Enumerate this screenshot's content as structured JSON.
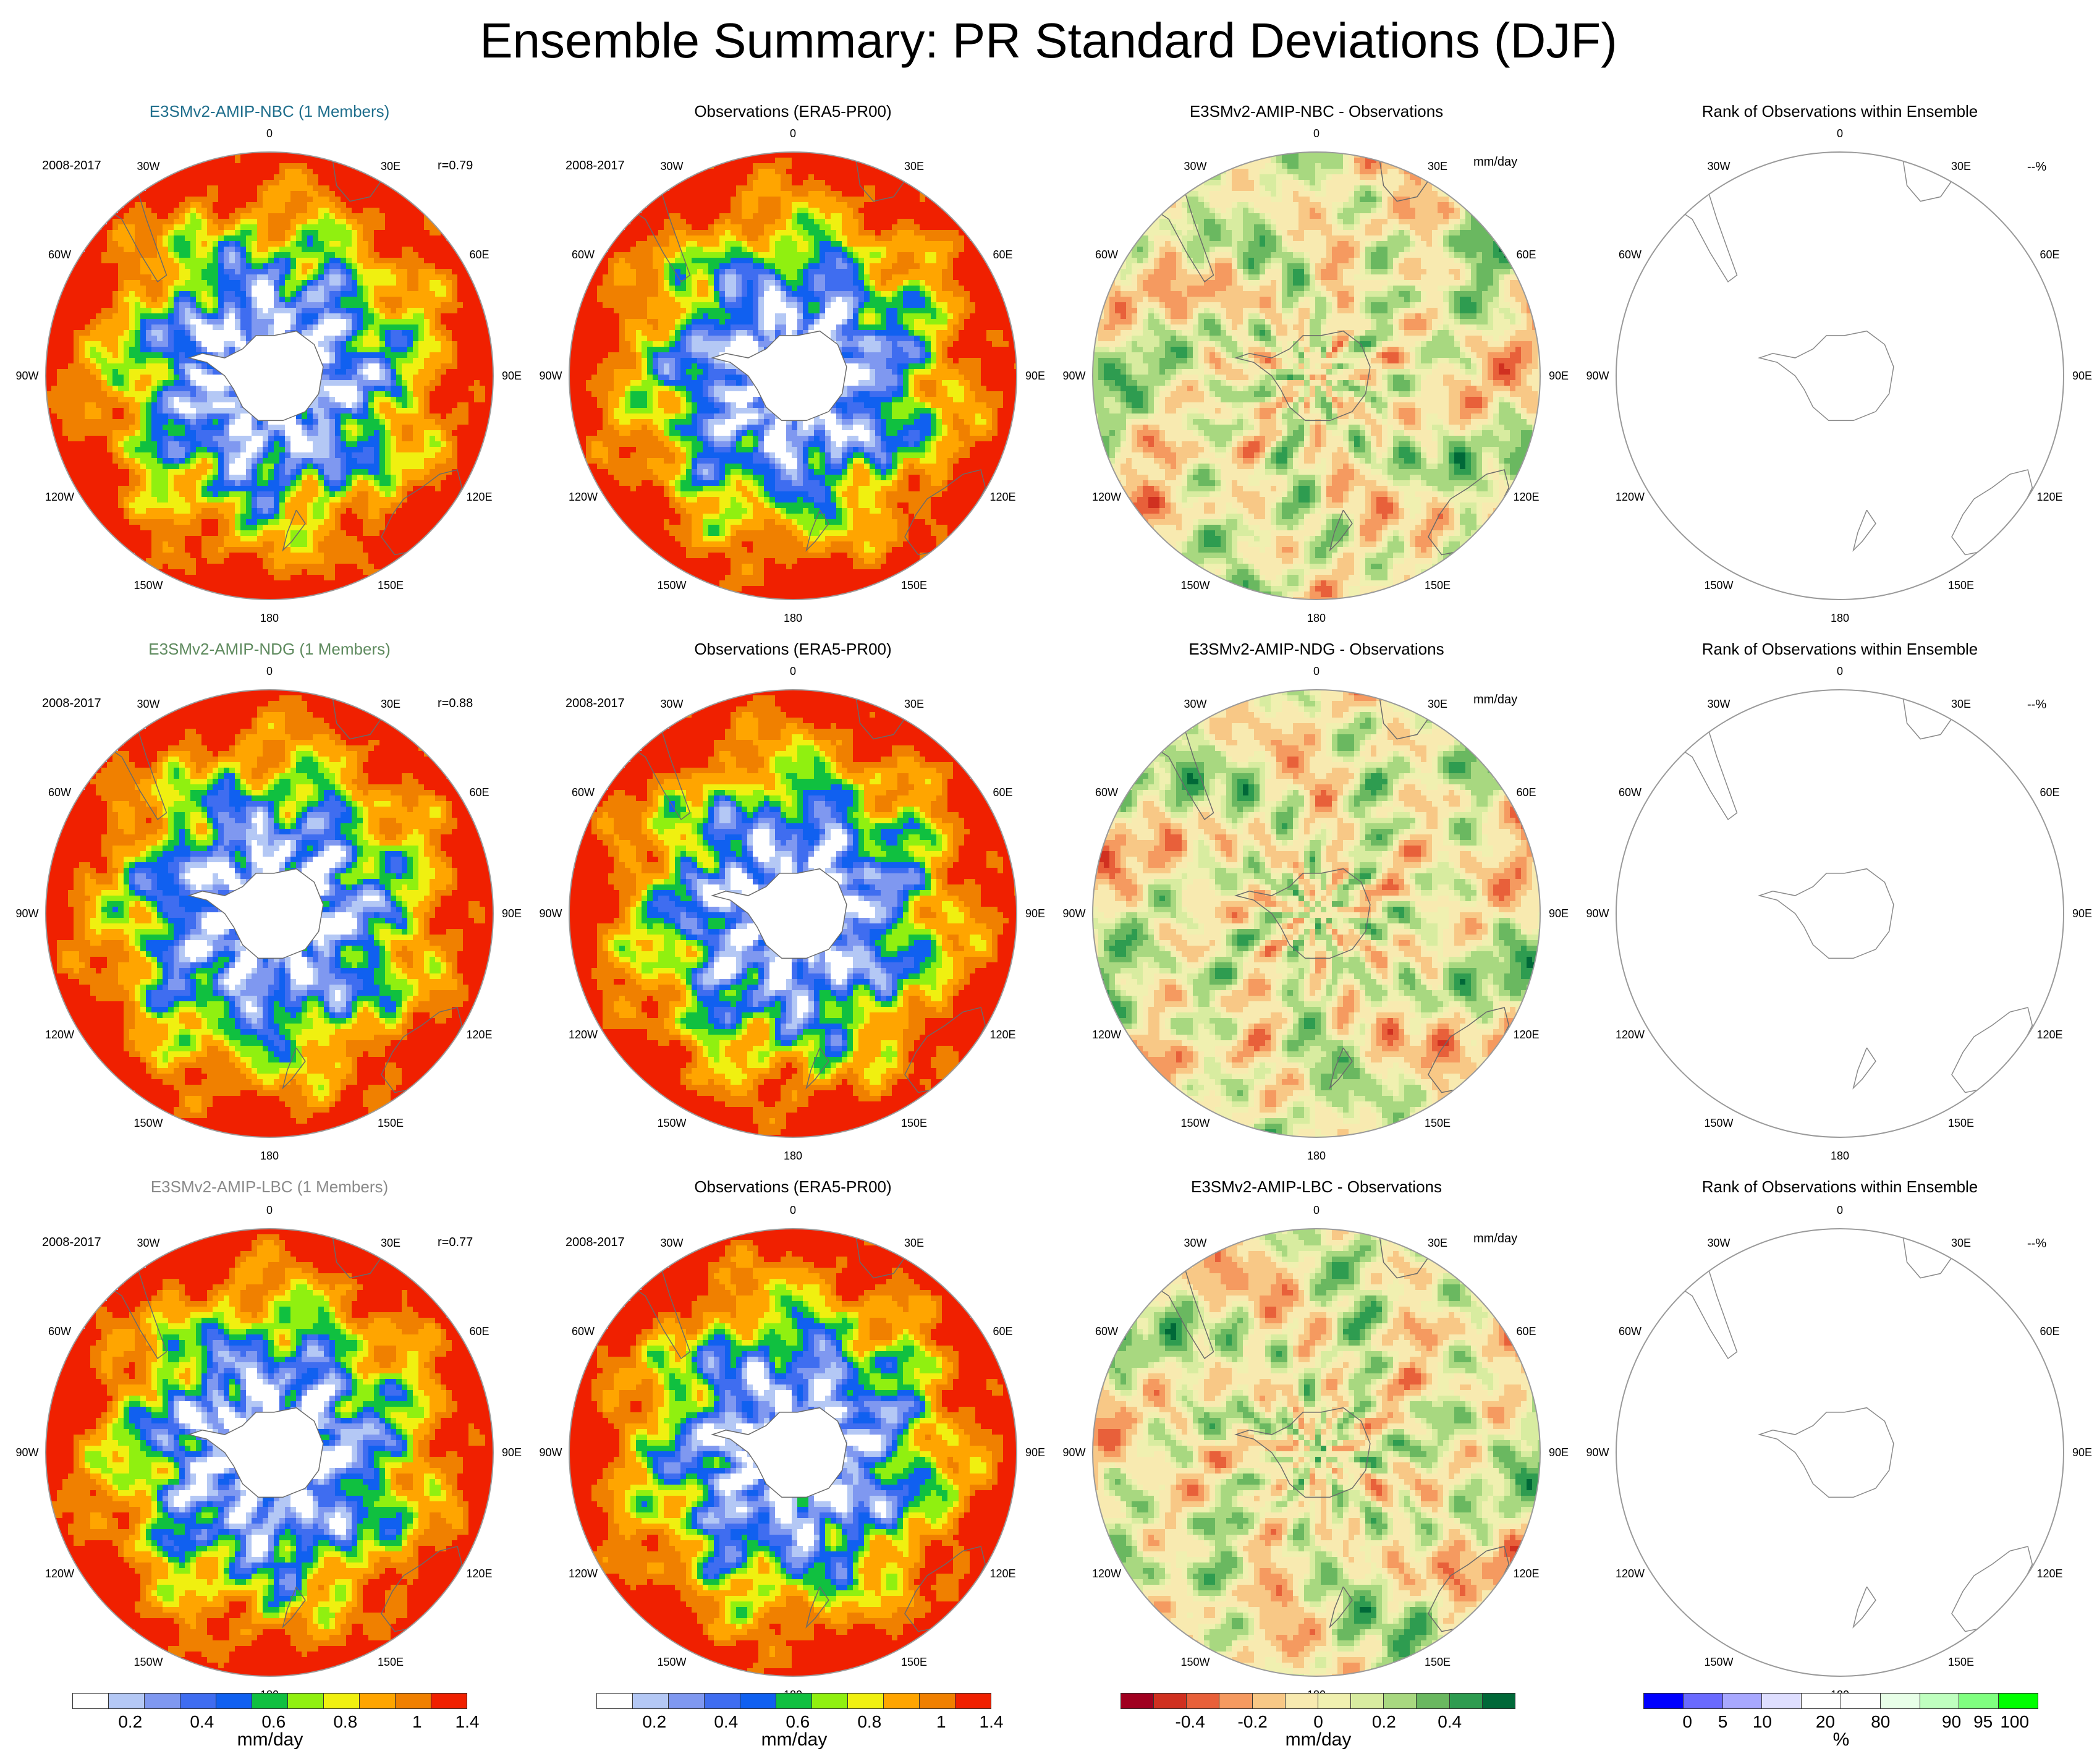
{
  "title": "Ensemble Summary: PR Standard Deviations (DJF)",
  "period": "2008-2017",
  "units": "mm/day",
  "rank_unit_label": "--%",
  "longitude_labels": [
    "0",
    "30E",
    "60E",
    "90E",
    "120E",
    "150E",
    "180",
    "150W",
    "120W",
    "90W",
    "60W",
    "30W"
  ],
  "rows": [
    {
      "model_title": "E3SMv2-AMIP-NBC (1 Members)",
      "model_title_color": "#1f6e8c",
      "r_value": "r=0.79",
      "obs_title": "Observations (ERA5-PR00)",
      "diff_title": "E3SMv2-AMIP-NBC - Observations",
      "rank_title": "Rank of Observations within Ensemble"
    },
    {
      "model_title": "E3SMv2-AMIP-NDG (1 Members)",
      "model_title_color": "#5e8a5e",
      "r_value": "r=0.88",
      "obs_title": "Observations (ERA5-PR00)",
      "diff_title": "E3SMv2-AMIP-NDG - Observations",
      "rank_title": "Rank of Observations within Ensemble"
    },
    {
      "model_title": "E3SMv2-AMIP-LBC (1 Members)",
      "model_title_color": "#8a8a8a",
      "r_value": "r=0.77",
      "obs_title": "Observations (ERA5-PR00)",
      "diff_title": "E3SMv2-AMIP-LBC - Observations",
      "rank_title": "Rank of Observations within Ensemble"
    }
  ],
  "colorbars": {
    "std": {
      "colors": [
        "#ffffff",
        "#b4c8f5",
        "#7f98f0",
        "#3f6df0",
        "#1060f0",
        "#10c040",
        "#90f010",
        "#f0f010",
        "#ffa500",
        "#f08000",
        "#f02000"
      ],
      "ticks": [
        "0.2",
        "0.4",
        "0.6",
        "0.8",
        "1",
        "1.4"
      ],
      "label": "mm/day"
    },
    "diff": {
      "colors": [
        "#a00020",
        "#d03020",
        "#e8603a",
        "#f59a60",
        "#f8c886",
        "#f8eab0",
        "#f0f0b0",
        "#d8eca0",
        "#a8d880",
        "#6ab860",
        "#2e9c50",
        "#006838"
      ],
      "ticks": [
        "-0.4",
        "-0.2",
        "0",
        "0.2",
        "0.4"
      ],
      "label": "mm/day"
    },
    "rank": {
      "colors": [
        "#0000ff",
        "#6a6aff",
        "#a8a8ff",
        "#dedeff",
        "#ffffff",
        "#ffffff",
        "#e8ffe8",
        "#bfffbf",
        "#80ff80",
        "#00ff00"
      ],
      "ticks": [
        "0",
        "5",
        "10",
        "20",
        "80",
        "90",
        "95",
        "100"
      ],
      "label": "%"
    }
  },
  "chart_data": [
    {
      "type": "heatmap",
      "title": "E3SMv2-AMIP-NBC (1 Members)",
      "projection": "south-polar-stereographic",
      "annotation": "r=0.79",
      "period": "2008-2017",
      "levels": [
        0.2,
        0.4,
        0.6,
        0.8,
        1,
        1.4
      ],
      "units": "mm/day"
    },
    {
      "type": "heatmap",
      "title": "Observations (ERA5-PR00)",
      "projection": "south-polar-stereographic",
      "period": "2008-2017",
      "levels": [
        0.2,
        0.4,
        0.6,
        0.8,
        1,
        1.4
      ],
      "units": "mm/day"
    },
    {
      "type": "heatmap",
      "title": "E3SMv2-AMIP-NBC - Observations",
      "projection": "south-polar-stereographic",
      "levels": [
        -0.4,
        -0.2,
        0,
        0.2,
        0.4
      ],
      "units": "mm/day"
    },
    {
      "type": "heatmap",
      "title": "Rank of Observations within Ensemble",
      "projection": "south-polar-stereographic",
      "levels": [
        0,
        5,
        10,
        20,
        80,
        90,
        95,
        100
      ],
      "units": "%"
    },
    {
      "type": "heatmap",
      "title": "E3SMv2-AMIP-NDG (1 Members)",
      "projection": "south-polar-stereographic",
      "annotation": "r=0.88",
      "period": "2008-2017",
      "levels": [
        0.2,
        0.4,
        0.6,
        0.8,
        1,
        1.4
      ],
      "units": "mm/day"
    },
    {
      "type": "heatmap",
      "title": "Observations (ERA5-PR00)",
      "projection": "south-polar-stereographic",
      "period": "2008-2017",
      "levels": [
        0.2,
        0.4,
        0.6,
        0.8,
        1,
        1.4
      ],
      "units": "mm/day"
    },
    {
      "type": "heatmap",
      "title": "E3SMv2-AMIP-NDG - Observations",
      "projection": "south-polar-stereographic",
      "levels": [
        -0.4,
        -0.2,
        0,
        0.2,
        0.4
      ],
      "units": "mm/day"
    },
    {
      "type": "heatmap",
      "title": "Rank of Observations within Ensemble",
      "projection": "south-polar-stereographic",
      "levels": [
        0,
        5,
        10,
        20,
        80,
        90,
        95,
        100
      ],
      "units": "%"
    },
    {
      "type": "heatmap",
      "title": "E3SMv2-AMIP-LBC (1 Members)",
      "projection": "south-polar-stereographic",
      "annotation": "r=0.77",
      "period": "2008-2017",
      "levels": [
        0.2,
        0.4,
        0.6,
        0.8,
        1,
        1.4
      ],
      "units": "mm/day"
    },
    {
      "type": "heatmap",
      "title": "Observations (ERA5-PR00)",
      "projection": "south-polar-stereographic",
      "period": "2008-2017",
      "levels": [
        0.2,
        0.4,
        0.6,
        0.8,
        1,
        1.4
      ],
      "units": "mm/day"
    },
    {
      "type": "heatmap",
      "title": "E3SMv2-AMIP-LBC - Observations",
      "projection": "south-polar-stereographic",
      "levels": [
        -0.4,
        -0.2,
        0,
        0.2,
        0.4
      ],
      "units": "mm/day"
    },
    {
      "type": "heatmap",
      "title": "Rank of Observations within Ensemble",
      "projection": "south-polar-stereographic",
      "levels": [
        0,
        5,
        10,
        20,
        80,
        90,
        95,
        100
      ],
      "units": "%"
    }
  ]
}
